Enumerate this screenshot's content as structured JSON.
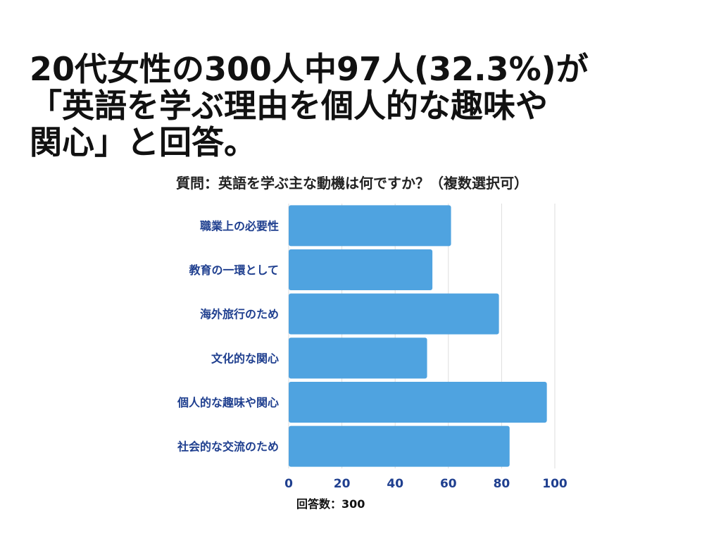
{
  "headline": {
    "line1": "20代女性の300人中97人(32.3%)が",
    "line2": "「英語を学ぶ理由を個人的な趣味や",
    "line3": "関心」と回答。"
  },
  "chart_data": {
    "type": "bar",
    "orientation": "horizontal",
    "title": "質問：英語を学ぶ主な動機は何ですか？（複数選択可）",
    "categories": [
      "職業上の必要性",
      "教育の一環として",
      "海外旅行のため",
      "文化的な関心",
      "個人的な趣味や関心",
      "社会的な交流のため"
    ],
    "values": [
      61,
      54,
      79,
      52,
      97,
      83
    ],
    "xlim": [
      0,
      100
    ],
    "xticks": [
      0,
      20,
      40,
      60,
      80,
      100
    ],
    "xlabel": "回答数：300",
    "grid": true,
    "bar_color": "#4fa3e0",
    "label_color": "#1f3f8f"
  }
}
